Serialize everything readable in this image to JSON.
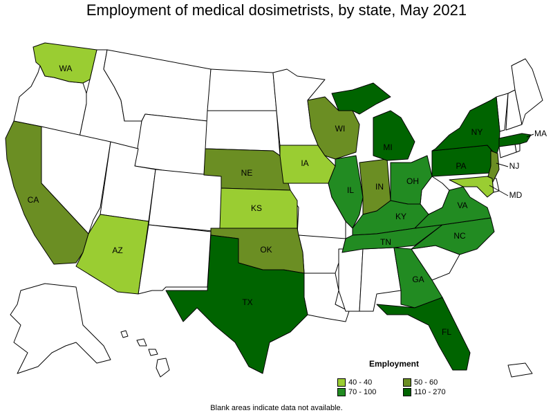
{
  "title": "Employment of medical dosimetrists, by state, May 2021",
  "footnote": "Blank areas indicate data not available.",
  "legend": {
    "title": "Employment",
    "items": [
      {
        "label": "40 - 40",
        "color": "#9acd32"
      },
      {
        "label": "50 - 60",
        "color": "#6b8e23"
      },
      {
        "label": "70 - 100",
        "color": "#228b22"
      },
      {
        "label": "110 - 270",
        "color": "#006400"
      }
    ]
  },
  "states": {
    "WA": {
      "label": "WA",
      "class": "40 - 40"
    },
    "AZ": {
      "label": "AZ",
      "class": "40 - 40"
    },
    "KS": {
      "label": "KS",
      "class": "40 - 40"
    },
    "IA": {
      "label": "IA",
      "class": "40 - 40"
    },
    "MD": {
      "label": "MD",
      "class": "40 - 40"
    },
    "CA": {
      "label": "CA",
      "class": "50 - 60"
    },
    "NE": {
      "label": "NE",
      "class": "50 - 60"
    },
    "OK": {
      "label": "OK",
      "class": "50 - 60"
    },
    "WI": {
      "label": "WI",
      "class": "50 - 60"
    },
    "IN": {
      "label": "IN",
      "class": "50 - 60"
    },
    "NJ": {
      "label": "NJ",
      "class": "50 - 60"
    },
    "IL": {
      "label": "IL",
      "class": "70 - 100"
    },
    "OH": {
      "label": "OH",
      "class": "70 - 100"
    },
    "KY": {
      "label": "KY",
      "class": "70 - 100"
    },
    "VA": {
      "label": "VA",
      "class": "70 - 100"
    },
    "NC": {
      "label": "NC",
      "class": "70 - 100"
    },
    "TN": {
      "label": "TN",
      "class": "70 - 100"
    },
    "GA": {
      "label": "GA",
      "class": "70 - 100"
    },
    "TX": {
      "label": "TX",
      "class": "110 - 270"
    },
    "MI": {
      "label": "MI",
      "class": "110 - 270"
    },
    "NY": {
      "label": "NY",
      "class": "110 - 270"
    },
    "PA": {
      "label": "PA",
      "class": "110 - 270"
    },
    "MA": {
      "label": "MA",
      "class": "110 - 270"
    },
    "FL": {
      "label": "FL",
      "class": "110 - 270"
    }
  }
}
